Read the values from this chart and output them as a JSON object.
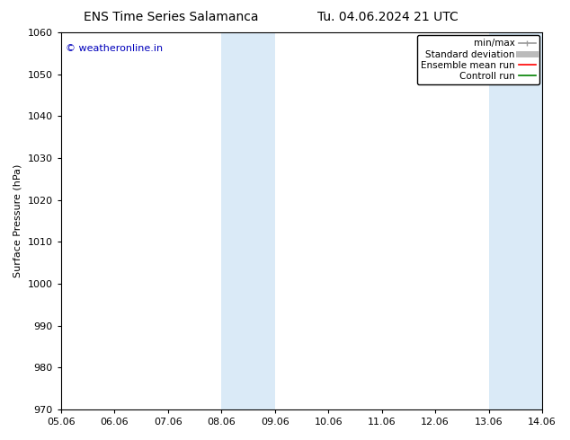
{
  "title_left": "ENS Time Series Salamanca",
  "title_right": "Tu. 04.06.2024 21 UTC",
  "ylabel": "Surface Pressure (hPa)",
  "ylim": [
    970,
    1060
  ],
  "yticks": [
    970,
    980,
    990,
    1000,
    1010,
    1020,
    1030,
    1040,
    1050,
    1060
  ],
  "xlim_start": 0,
  "xlim_end": 9,
  "xtick_labels": [
    "05.06",
    "06.06",
    "07.06",
    "08.06",
    "09.06",
    "10.06",
    "11.06",
    "12.06",
    "13.06",
    "14.06"
  ],
  "xtick_positions": [
    0,
    1,
    2,
    3,
    4,
    5,
    6,
    7,
    8,
    9
  ],
  "shaded_regions": [
    {
      "xstart": 3,
      "xend": 4,
      "color": "#daeaf7"
    },
    {
      "xstart": 8,
      "xend": 9,
      "color": "#daeaf7"
    }
  ],
  "watermark": "© weatheronline.in",
  "watermark_color": "#0000bb",
  "legend_items": [
    {
      "label": "min/max",
      "color": "#999999",
      "linestyle": "-",
      "linewidth": 1.2
    },
    {
      "label": "Standard deviation",
      "color": "#bbbbbb",
      "linestyle": "-",
      "linewidth": 5
    },
    {
      "label": "Ensemble mean run",
      "color": "#ff0000",
      "linestyle": "-",
      "linewidth": 1.2
    },
    {
      "label": "Controll run",
      "color": "#008000",
      "linestyle": "-",
      "linewidth": 1.2
    }
  ],
  "background_color": "#ffffff",
  "title_fontsize": 10,
  "axis_fontsize": 8,
  "tick_fontsize": 8,
  "legend_fontsize": 7.5
}
